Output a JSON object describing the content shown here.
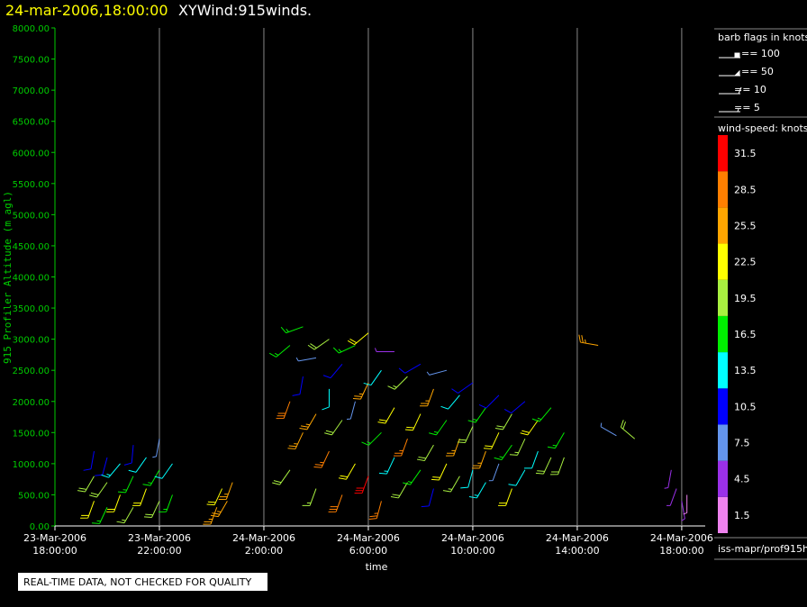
{
  "chart_data": {
    "type": "windbarb",
    "title": "24-mar-2006,18:00:00",
    "subtitle": "XYWind:915winds.",
    "xlabel": "time",
    "ylabel": "915 Profiler Altitude (m agl)",
    "xlim": [
      0,
      24.9
    ],
    "xticks": [
      {
        "value": 0,
        "label": "23-Mar-2006\n18:00:00"
      },
      {
        "value": 4,
        "label": "23-Mar-2006\n22:00:00"
      },
      {
        "value": 8,
        "label": "24-Mar-2006\n2:00:00"
      },
      {
        "value": 12,
        "label": "24-Mar-2006\n6:00:00"
      },
      {
        "value": 16,
        "label": "24-Mar-2006\n10:00:00"
      },
      {
        "value": 20,
        "label": "24-Mar-2006\n14:00:00"
      },
      {
        "value": 24,
        "label": "24-Mar-2006\n18:00:00"
      }
    ],
    "ylim": [
      0,
      8000
    ],
    "yticks": [
      {
        "value": 0,
        "label": "0.00"
      },
      {
        "value": 500,
        "label": "500.00"
      },
      {
        "value": 1000,
        "label": "1000.00"
      },
      {
        "value": 1500,
        "label": "1500.00"
      },
      {
        "value": 2000,
        "label": "2000.00"
      },
      {
        "value": 2500,
        "label": "2500.00"
      },
      {
        "value": 3000,
        "label": "3000.00"
      },
      {
        "value": 3500,
        "label": "3500.00"
      },
      {
        "value": 4000,
        "label": "4000.00"
      },
      {
        "value": 4500,
        "label": "4500.00"
      },
      {
        "value": 5000,
        "label": "5000.00"
      },
      {
        "value": 5500,
        "label": "5500.00"
      },
      {
        "value": 6000,
        "label": "6000.00"
      },
      {
        "value": 6500,
        "label": "6500.00"
      },
      {
        "value": 7000,
        "label": "7000.00"
      },
      {
        "value": 7500,
        "label": "7500.00"
      },
      {
        "value": 8000,
        "label": "8000.00"
      }
    ],
    "grid": true,
    "barbs": {
      "x": [
        1.5,
        1.5,
        1.5,
        2.0,
        2.0,
        2.0,
        2.5,
        2.5,
        3.0,
        3.0,
        3.0,
        3.5,
        3.5,
        4.0,
        4.0,
        4.0,
        4.5,
        4.5,
        6.2,
        6.4,
        6.6,
        6.8,
        9.0,
        9.0,
        9.0,
        9.5,
        9.5,
        9.5,
        10.0,
        10.0,
        10.0,
        10.5,
        10.5,
        10.5,
        11.0,
        11.0,
        11.0,
        11.5,
        11.5,
        11.5,
        12.0,
        12.0,
        12.0,
        12.5,
        12.5,
        12.5,
        13.0,
        13.0,
        13.0,
        13.5,
        13.5,
        13.5,
        14.0,
        14.0,
        14.0,
        14.5,
        14.5,
        14.5,
        15.0,
        15.0,
        15.0,
        15.5,
        15.5,
        15.5,
        16.0,
        16.0,
        16.0,
        16.5,
        16.5,
        16.5,
        17.0,
        17.0,
        17.0,
        17.5,
        17.5,
        17.5,
        18.0,
        18.0,
        18.0,
        18.5,
        18.5,
        19.0,
        19.0,
        19.5,
        19.5,
        20.8,
        21.5,
        22.2,
        23.6,
        23.8,
        24.0,
        24.2
      ],
      "altitude": [
        400,
        800,
        1200,
        300,
        700,
        1100,
        500,
        1000,
        300,
        800,
        1300,
        600,
        1100,
        400,
        900,
        1400,
        500,
        1000,
        300,
        600,
        400,
        700,
        2900,
        2000,
        900,
        3200,
        2400,
        1500,
        2700,
        1800,
        600,
        3000,
        2200,
        1200,
        2600,
        1700,
        500,
        2900,
        2000,
        1000,
        3100,
        2300,
        800,
        2500,
        1500,
        400,
        2800,
        1900,
        1100,
        2400,
        1400,
        700,
        2600,
        1800,
        900,
        2200,
        1300,
        600,
        2500,
        1700,
        1000,
        2100,
        1400,
        800,
        2300,
        1600,
        900,
        1900,
        1200,
        700,
        2100,
        1500,
        1000,
        1800,
        1300,
        600,
        2000,
        1400,
        900,
        1700,
        1200,
        1900,
        1100,
        1500,
        1100,
        2900,
        1450,
        1400,
        900,
        600,
        400,
        500
      ],
      "speed": [
        22,
        20,
        12,
        18,
        21,
        10,
        23,
        15,
        19,
        17,
        11,
        22,
        14,
        20,
        16,
        9,
        18,
        13,
        26,
        24,
        27,
        25,
        18,
        30,
        20,
        16,
        11,
        25,
        8,
        27,
        19,
        20,
        14,
        29,
        12,
        21,
        30,
        17,
        9,
        24,
        22,
        26,
        31,
        13,
        18,
        28,
        6,
        23,
        15,
        19,
        29,
        21,
        11,
        24,
        17,
        27,
        20,
        12,
        8,
        16,
        22,
        14,
        25,
        19,
        10,
        21,
        13,
        18,
        27,
        15,
        12,
        23,
        9,
        20,
        16,
        24,
        11,
        19,
        14,
        22,
        13,
        16,
        20,
        18,
        21,
        27,
        8,
        20,
        5,
        4,
        6,
        3
      ],
      "direction": [
        200,
        210,
        190,
        205,
        215,
        195,
        200,
        220,
        210,
        205,
        185,
        200,
        215,
        205,
        210,
        190,
        200,
        215,
        200,
        205,
        210,
        200,
        230,
        200,
        215,
        250,
        190,
        205,
        260,
        210,
        200,
        235,
        180,
        205,
        220,
        215,
        200,
        245,
        195,
        210,
        230,
        205,
        200,
        215,
        225,
        195,
        270,
        210,
        205,
        225,
        200,
        210,
        240,
        205,
        215,
        200,
        210,
        195,
        255,
        215,
        205,
        220,
        200,
        210,
        235,
        205,
        195,
        215,
        200,
        210,
        225,
        205,
        200,
        210,
        215,
        200,
        230,
        205,
        210,
        215,
        200,
        220,
        205,
        210,
        200,
        280,
        300,
        310,
        190,
        200,
        170,
        180
      ]
    },
    "colorbar": {
      "title": "wind-speed: knots",
      "labels": [
        1.5,
        4.5,
        7.5,
        10.5,
        13.5,
        16.5,
        19.5,
        22.5,
        25.5,
        28.5,
        31.5
      ],
      "colors": [
        "#ee82ee",
        "#9a30e8",
        "#6495ed",
        "#0000ff",
        "#00ffff",
        "#00ee00",
        "#a8f040",
        "#ffff00",
        "#ffa500",
        "#ff7f00",
        "#ff0000"
      ]
    },
    "barb_legend": {
      "title": "barb flags in knots",
      "entries": [
        "== 100",
        "== 50",
        "== 10",
        "== 5"
      ]
    },
    "source": "iss-mapr/prof915h",
    "note": "REAL-TIME DATA, NOT CHECKED FOR QUALITY"
  }
}
